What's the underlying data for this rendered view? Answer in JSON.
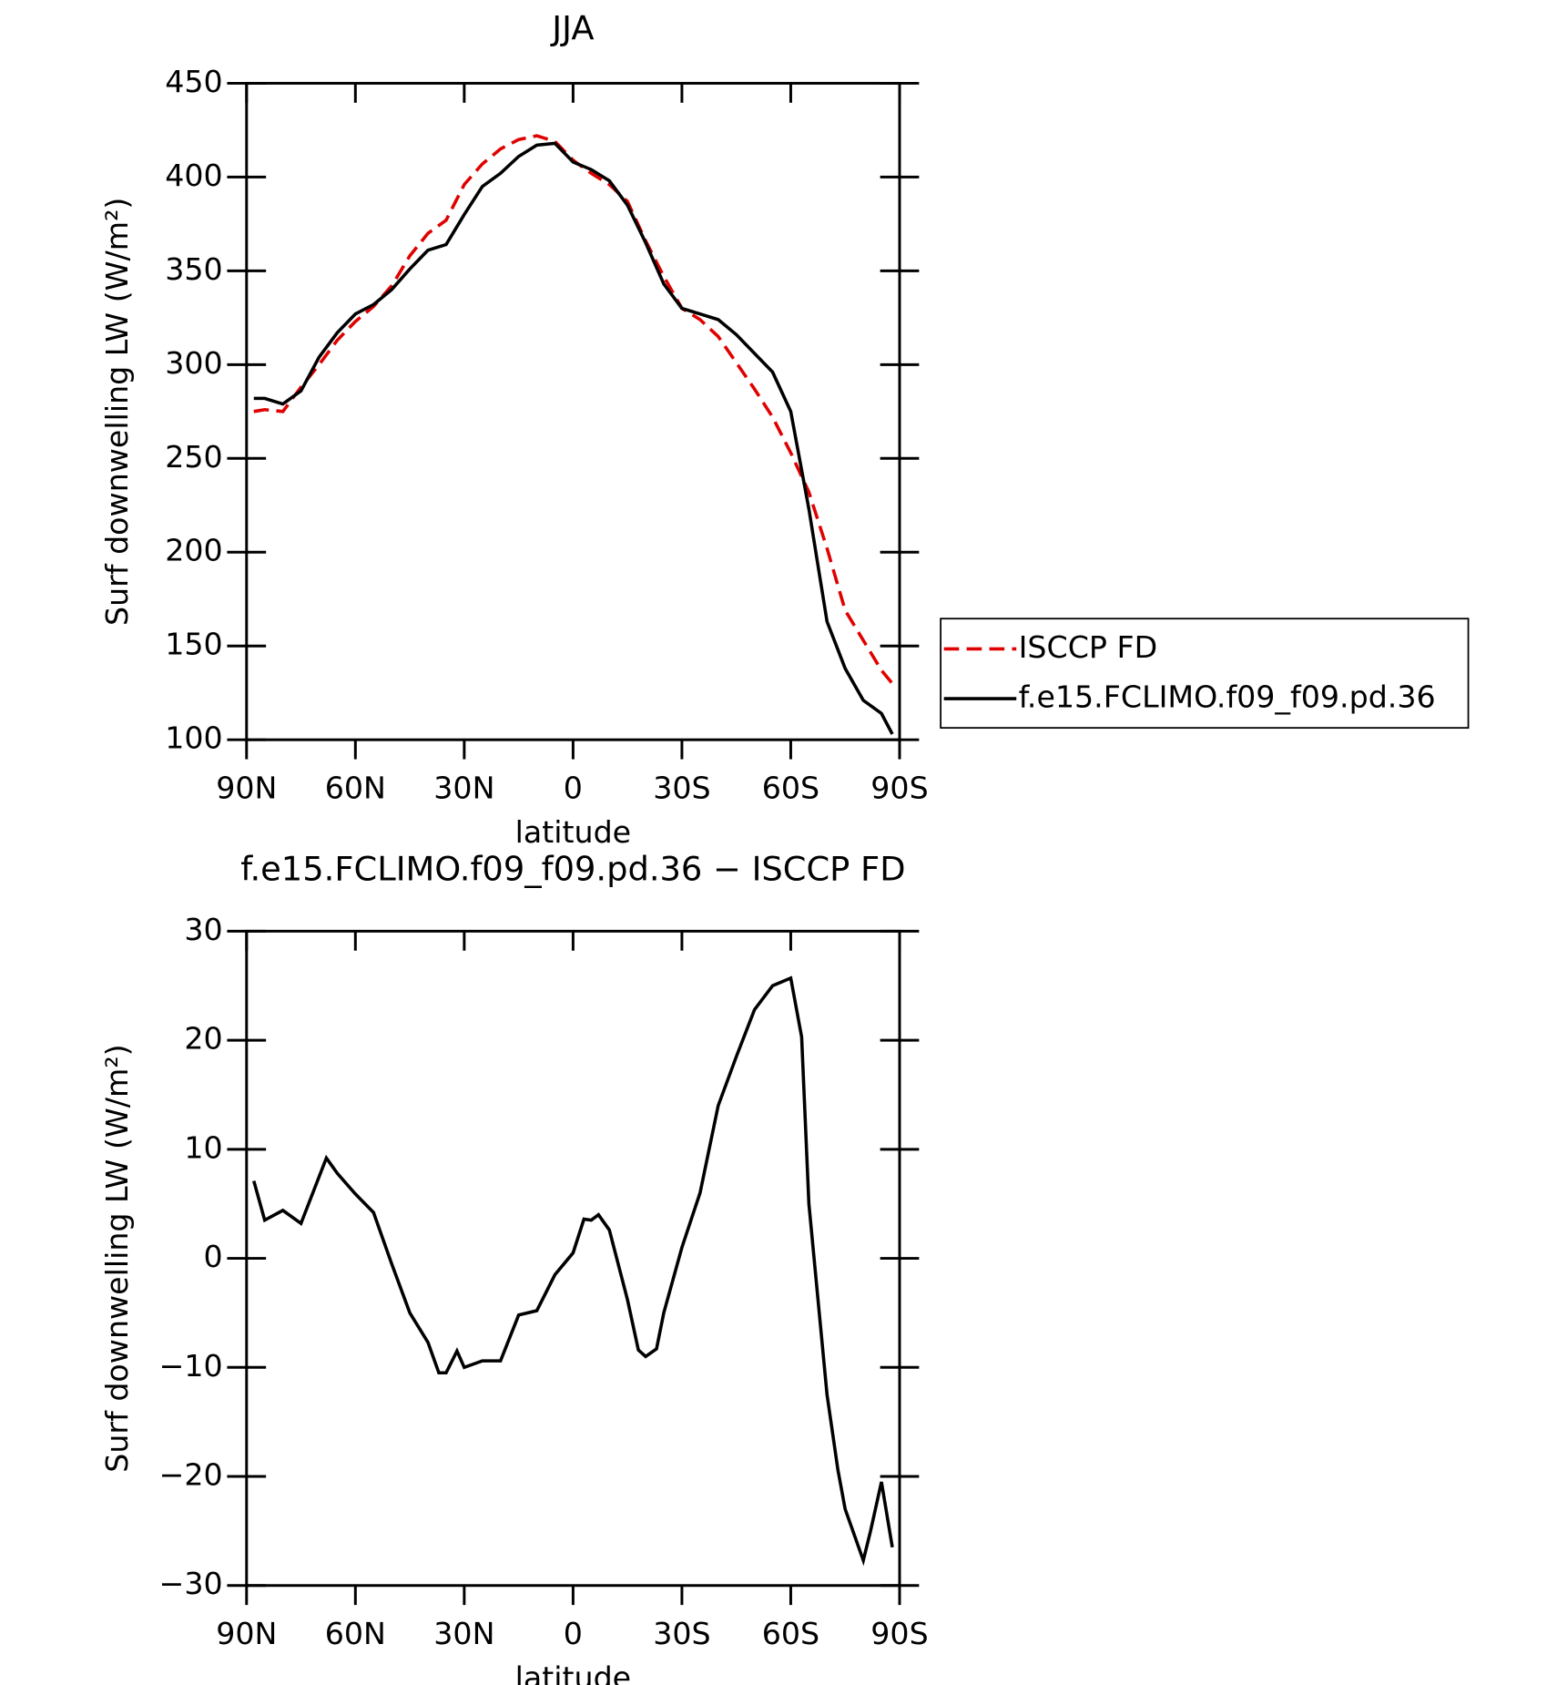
{
  "chart_data": [
    {
      "type": "line",
      "title": "JJA",
      "xlabel": "latitude",
      "ylabel": "Surf downwelling LW (W/m²)",
      "xlim": [
        90,
        -90
      ],
      "ylim": [
        100,
        450
      ],
      "xticks": [
        {
          "value": 90,
          "label": "90N"
        },
        {
          "value": 60,
          "label": "60N"
        },
        {
          "value": 30,
          "label": "30N"
        },
        0,
        {
          "value": -30,
          "label": "30S"
        },
        {
          "value": -60,
          "label": "60S"
        },
        {
          "value": -90,
          "label": "90S"
        }
      ],
      "yticks": [
        100,
        150,
        200,
        250,
        300,
        350,
        400,
        450
      ],
      "legend": "right",
      "x": [
        88,
        85,
        80,
        75,
        70,
        65,
        60,
        55,
        50,
        45,
        40,
        35,
        30,
        25,
        20,
        15,
        10,
        5,
        0,
        -5,
        -10,
        -15,
        -20,
        -25,
        -30,
        -35,
        -40,
        -45,
        -50,
        -55,
        -60,
        -65,
        -70,
        -75,
        -80,
        -85,
        -88
      ],
      "series": [
        {
          "name": "ISCCP FD",
          "color": "#e00000",
          "dash": true,
          "values": [
            275,
            276,
            275,
            288,
            300,
            313,
            323,
            331,
            342,
            358,
            370,
            377,
            396,
            407,
            415,
            420,
            422,
            419,
            409,
            402,
            396,
            387,
            366,
            347,
            330,
            324,
            315,
            301,
            287,
            272,
            253,
            232,
            202,
            169,
            153,
            137,
            130
          ]
        },
        {
          "name": "f.e15.FCLIMO.f09_f09.pd.36",
          "color": "#000000",
          "dash": false,
          "values": [
            282,
            282,
            279,
            286,
            304,
            317,
            327,
            332,
            340,
            351,
            361,
            364,
            380,
            395,
            402,
            411,
            417,
            418,
            408,
            404,
            398,
            385,
            365,
            343,
            330,
            327,
            324,
            316,
            306,
            296,
            275,
            223,
            163,
            138,
            121,
            114,
            103
          ]
        }
      ]
    },
    {
      "type": "line",
      "title": "f.e15.FCLIMO.f09_f09.pd.36 − ISCCP FD",
      "xlabel": "latitude",
      "ylabel": "Surf downwelling LW (W/m²)",
      "xlim": [
        90,
        -90
      ],
      "ylim": [
        -30,
        30
      ],
      "xticks": [
        {
          "value": 90,
          "label": "90N"
        },
        {
          "value": 60,
          "label": "60N"
        },
        {
          "value": 30,
          "label": "30N"
        },
        0,
        {
          "value": -30,
          "label": "30S"
        },
        {
          "value": -60,
          "label": "60S"
        },
        {
          "value": -90,
          "label": "90S"
        }
      ],
      "yticks": [
        {
          "value": -30,
          "label": "−30"
        },
        {
          "value": -20,
          "label": "−20"
        },
        {
          "value": -10,
          "label": "−10"
        },
        0,
        10,
        20,
        30
      ],
      "x": [
        88,
        85,
        80,
        75,
        68,
        65,
        60,
        55,
        50,
        45,
        40,
        37,
        35,
        32,
        30,
        25,
        20,
        15,
        10,
        5,
        0,
        -3,
        -5,
        -7,
        -10,
        -15,
        -18,
        -20,
        -23,
        -25,
        -30,
        -35,
        -40,
        -45,
        -50,
        -55,
        -60,
        -63,
        -65,
        -70,
        -73,
        -75,
        -80,
        -82,
        -85,
        -88
      ],
      "series": [
        {
          "color": "#000000",
          "values": [
            7.1,
            3.5,
            4.4,
            3.2,
            9.2,
            7.8,
            5.9,
            4.2,
            -0.5,
            -5,
            -7.7,
            -10.5,
            -10.5,
            -8.5,
            -10,
            -9.4,
            -9.4,
            -5.2,
            -4.8,
            -1.5,
            0.5,
            3.6,
            3.5,
            4,
            2.6,
            -3.8,
            -8.4,
            -9,
            -8.3,
            -5,
            1,
            6,
            14,
            18.5,
            22.8,
            25,
            25.7,
            20.3,
            5,
            -12.5,
            -19.4,
            -23,
            -27.7,
            -25,
            -20.5,
            -26.5
          ]
        }
      ]
    }
  ]
}
